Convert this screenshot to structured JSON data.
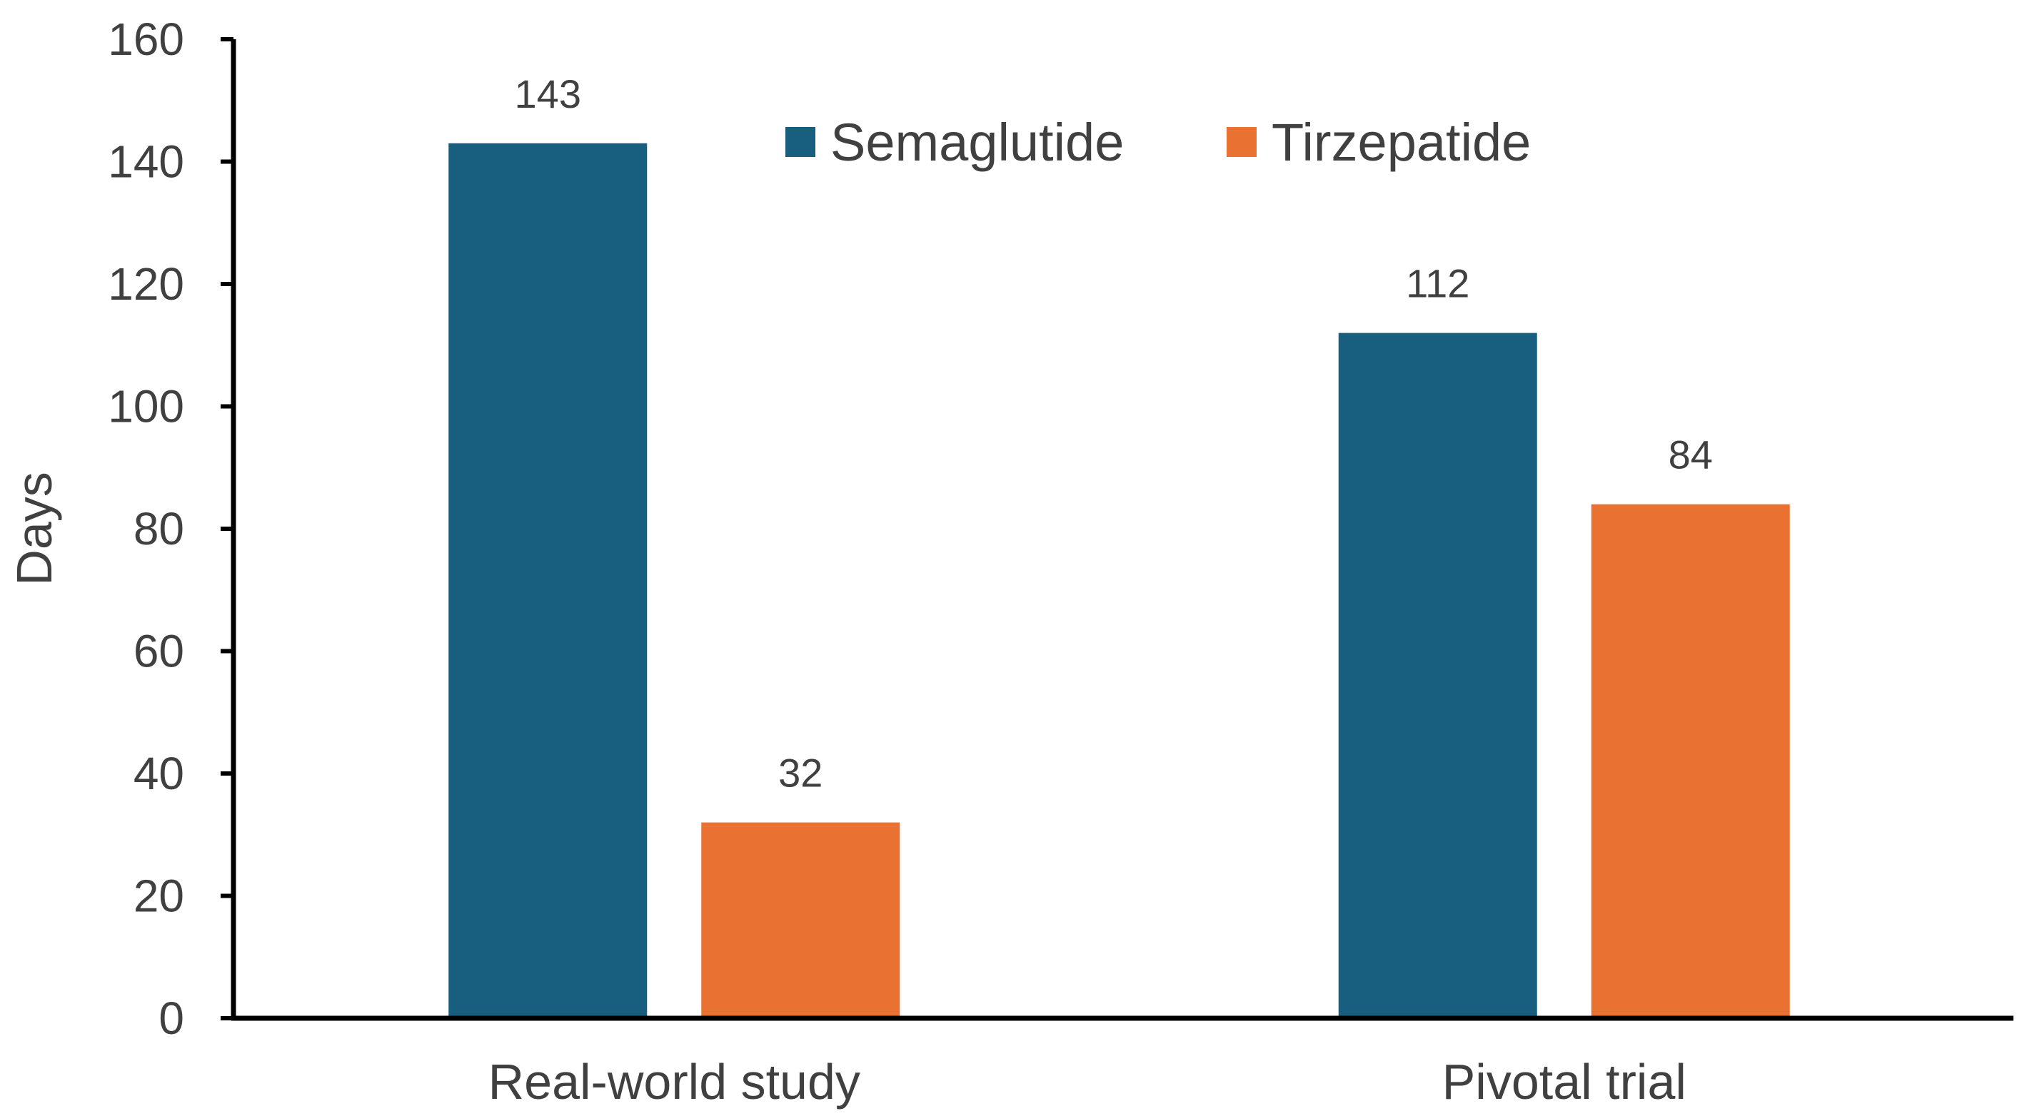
{
  "chart_data": {
    "type": "bar",
    "title": "",
    "xlabel": "",
    "ylabel": "Days",
    "ylim": [
      0,
      160
    ],
    "yticks": [
      0,
      20,
      40,
      60,
      80,
      100,
      120,
      140,
      160
    ],
    "categories": [
      "Real-world study",
      "Pivotal trial"
    ],
    "series": [
      {
        "name": "Semaglutide",
        "values": [
          143,
          112
        ],
        "color": "#175E7F"
      },
      {
        "name": "Tirzepatide",
        "values": [
          32,
          84
        ],
        "color": "#E97132"
      }
    ],
    "grid": false,
    "legend": "top-center",
    "data_labels": true
  }
}
